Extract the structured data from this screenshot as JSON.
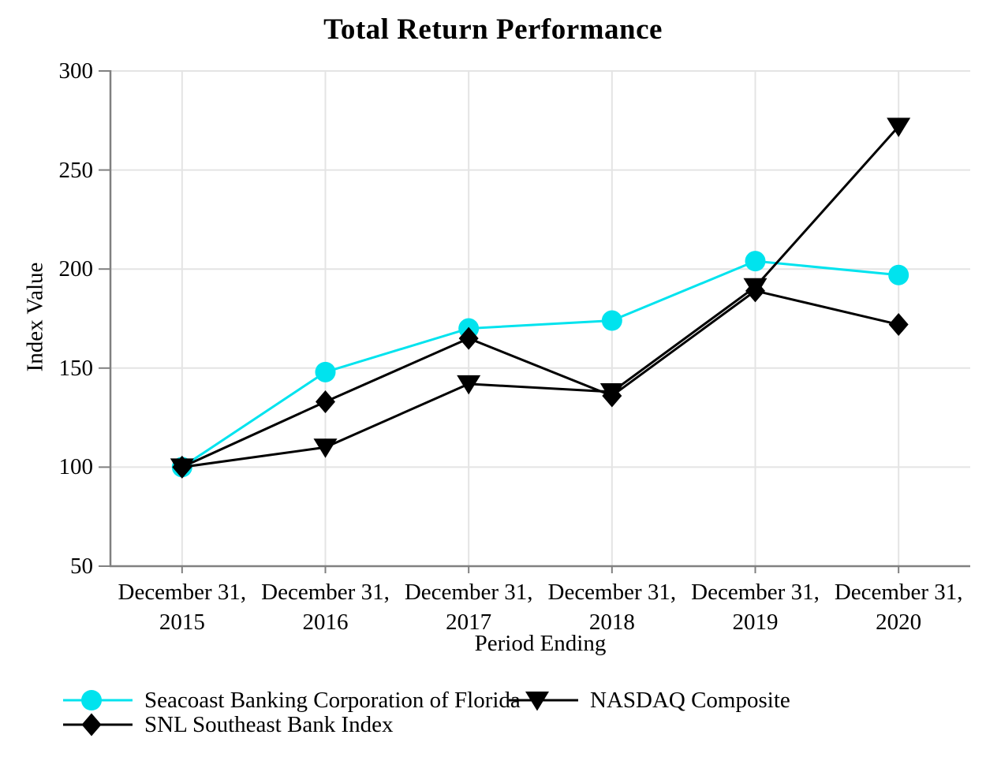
{
  "chart_data": {
    "type": "line",
    "title": "Total Return Performance",
    "xlabel": "Period Ending",
    "ylabel": "Index Value",
    "ylim": [
      50,
      300
    ],
    "yticks": [
      50,
      100,
      150,
      200,
      250,
      300
    ],
    "grid": "light gray horizontal and vertical gridlines",
    "legend_position": "below chart, two columns, left aligned",
    "categories": [
      "December 31,\n2015",
      "December 31,\n2016",
      "December 31,\n2017",
      "December 31,\n2018",
      "December 31,\n2019",
      "December 31,\n2020"
    ],
    "series": [
      {
        "name": "Seacoast Banking Corporation of Florida",
        "color": "#00E3EE",
        "marker": "circle",
        "values": [
          100,
          148,
          170,
          174,
          204,
          197
        ]
      },
      {
        "name": "SNL Southeast Bank Index",
        "color": "#000000",
        "marker": "diamond",
        "values": [
          100,
          133,
          165,
          136,
          189,
          172
        ]
      },
      {
        "name": "NASDAQ Composite",
        "color": "#000000",
        "marker": "triangle-down",
        "values": [
          100,
          110,
          142,
          138,
          191,
          272
        ]
      }
    ],
    "axis_color": "#808080",
    "gridline_color": "#e4e4e4"
  }
}
